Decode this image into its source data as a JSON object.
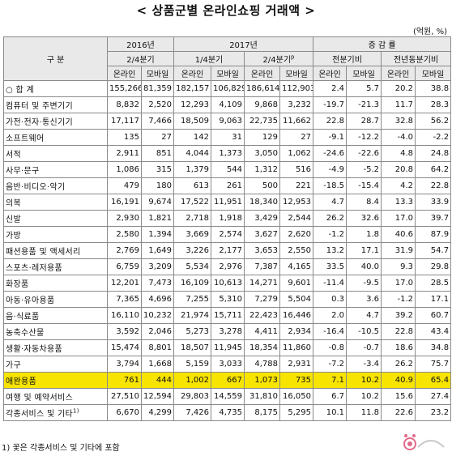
{
  "title": "< 상품군별 온라인쇼핑 거래액 >",
  "unit": "(억원, %)",
  "header": {
    "category": "구   분",
    "year2016": "2016년",
    "year2017": "2017년",
    "change": "증 감 률",
    "q2_2016": "2/4분기",
    "q1_2017": "1/4분기",
    "q2_2017": "2/4분기",
    "q2_2017_mark": "p",
    "qoq": "전분기비",
    "yoy": "전년동분기비",
    "online": "온라인",
    "mobile": "모바일"
  },
  "rows": [
    {
      "label": "○ 합  계",
      "v": [
        "155,266",
        "81,359",
        "182,157",
        "106,829",
        "186,614",
        "112,903",
        "2.4",
        "5.7",
        "20.2",
        "38.8"
      ]
    },
    {
      "label": "컴퓨터 및 주변기기",
      "v": [
        "8,832",
        "2,520",
        "12,293",
        "4,109",
        "9,868",
        "3,232",
        "-19.7",
        "-21.3",
        "11.7",
        "28.3"
      ]
    },
    {
      "label": "가전·전자·통신기기",
      "v": [
        "17,117",
        "7,466",
        "18,509",
        "9,063",
        "22,735",
        "11,662",
        "22.8",
        "28.7",
        "32.8",
        "56.2"
      ]
    },
    {
      "label": "소프트웨어",
      "v": [
        "135",
        "27",
        "142",
        "31",
        "129",
        "27",
        "-9.1",
        "-12.2",
        "-4.0",
        "-2.2"
      ]
    },
    {
      "label": "서적",
      "v": [
        "2,911",
        "851",
        "4,044",
        "1,373",
        "3,050",
        "1,062",
        "-24.6",
        "-22.6",
        "4.8",
        "24.8"
      ]
    },
    {
      "label": "사무·문구",
      "v": [
        "1,086",
        "315",
        "1,379",
        "544",
        "1,312",
        "516",
        "-4.9",
        "-5.2",
        "20.8",
        "64.2"
      ]
    },
    {
      "label": "음반·비디오·악기",
      "v": [
        "479",
        "180",
        "613",
        "261",
        "500",
        "221",
        "-18.5",
        "-15.4",
        "4.2",
        "22.8"
      ]
    },
    {
      "label": "의복",
      "v": [
        "16,191",
        "9,674",
        "17,522",
        "11,951",
        "18,340",
        "12,953",
        "4.7",
        "8.4",
        "13.3",
        "33.9"
      ]
    },
    {
      "label": "신발",
      "v": [
        "2,930",
        "1,821",
        "2,718",
        "1,918",
        "3,429",
        "2,544",
        "26.2",
        "32.6",
        "17.0",
        "39.7"
      ]
    },
    {
      "label": "가방",
      "v": [
        "2,580",
        "1,394",
        "3,669",
        "2,574",
        "3,627",
        "2,620",
        "-1.2",
        "1.8",
        "40.6",
        "87.9"
      ]
    },
    {
      "label": "패션용품 및 액세서리",
      "v": [
        "2,769",
        "1,649",
        "3,226",
        "2,177",
        "3,653",
        "2,550",
        "13.2",
        "17.1",
        "31.9",
        "54.7"
      ]
    },
    {
      "label": "스포츠·레저용품",
      "v": [
        "6,759",
        "3,209",
        "5,534",
        "2,976",
        "7,387",
        "4,165",
        "33.5",
        "40.0",
        "9.3",
        "29.8"
      ]
    },
    {
      "label": "화장품",
      "v": [
        "12,201",
        "7,473",
        "16,109",
        "10,613",
        "14,271",
        "9,601",
        "-11.4",
        "-9.5",
        "17.0",
        "28.5"
      ]
    },
    {
      "label": "아동·유아용품",
      "v": [
        "7,365",
        "4,696",
        "7,255",
        "5,310",
        "7,279",
        "5,504",
        "0.3",
        "3.6",
        "-1.2",
        "17.1"
      ]
    },
    {
      "label": "음·식료품",
      "v": [
        "16,110",
        "10,232",
        "21,974",
        "15,711",
        "22,423",
        "16,446",
        "2.0",
        "4.7",
        "39.2",
        "60.7"
      ]
    },
    {
      "label": "농축수산물",
      "v": [
        "3,592",
        "2,046",
        "5,273",
        "3,278",
        "4,411",
        "2,934",
        "-16.4",
        "-10.5",
        "22.8",
        "43.4"
      ]
    },
    {
      "label": "생활·자동차용품",
      "v": [
        "15,474",
        "8,801",
        "18,507",
        "11,945",
        "18,354",
        "11,860",
        "-0.8",
        "-0.7",
        "18.6",
        "34.8"
      ]
    },
    {
      "label": "가구",
      "v": [
        "3,794",
        "1,668",
        "5,159",
        "3,033",
        "4,788",
        "2,931",
        "-7.2",
        "-3.4",
        "26.2",
        "75.7"
      ]
    },
    {
      "label": "애완용품",
      "v": [
        "761",
        "444",
        "1,002",
        "667",
        "1,073",
        "735",
        "7.1",
        "10.2",
        "40.9",
        "65.4"
      ],
      "highlight": true
    },
    {
      "label": "여행 및 예약서비스",
      "v": [
        "27,510",
        "12,594",
        "29,803",
        "14,559",
        "31,810",
        "16,050",
        "6.7",
        "10.2",
        "15.6",
        "27.4"
      ]
    },
    {
      "label": "각종서비스 및 기타",
      "label_mark": "1)",
      "v": [
        "6,670",
        "4,299",
        "7,426",
        "4,735",
        "8,175",
        "5,295",
        "10.1",
        "11.8",
        "22.6",
        "23.2"
      ]
    }
  ],
  "footnote": "1) 꽃은 각종서비스 및 기타에 포함",
  "colors": {
    "highlight": "#f7e400",
    "header_bg": "#e9e9e9",
    "border": "#8a8a8a"
  }
}
